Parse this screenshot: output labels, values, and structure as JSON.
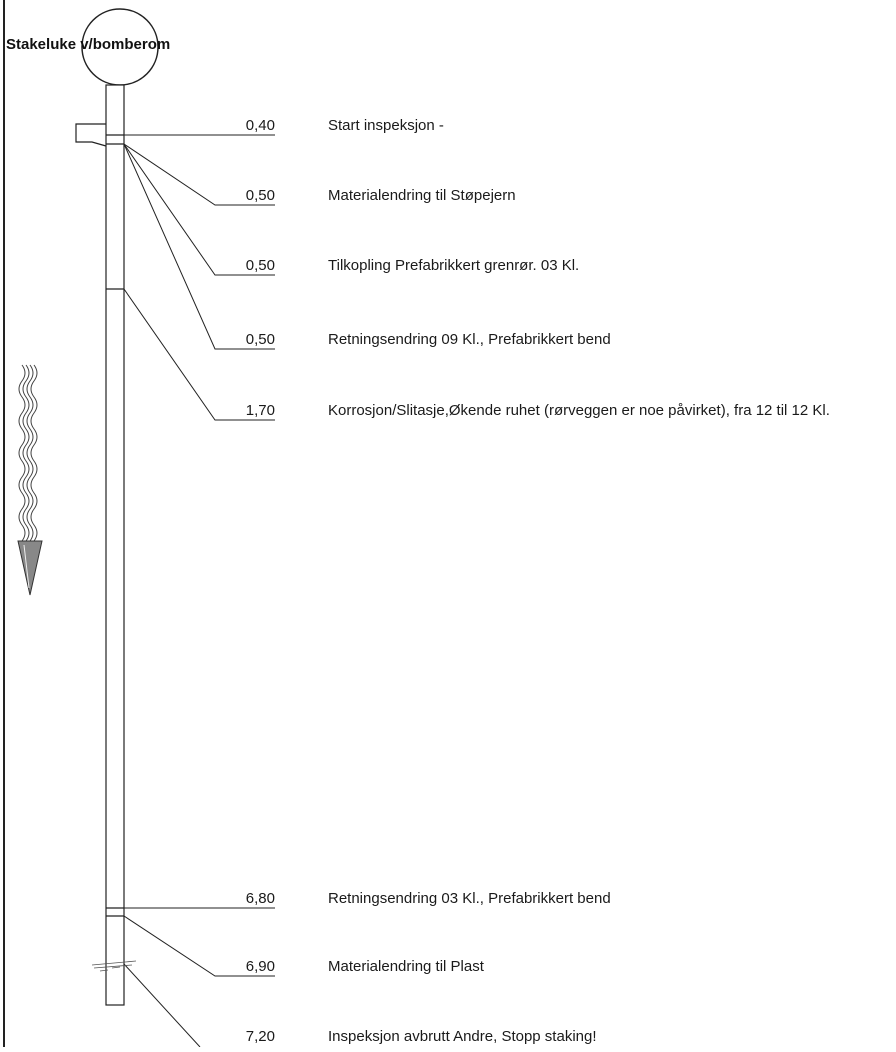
{
  "header": {
    "manhole_label": "Stakeluke v/bomberom"
  },
  "events": [
    {
      "distance": "0,40",
      "description": "Start inspeksjon -"
    },
    {
      "distance": "0,50",
      "description": "Materialendring til Støpejern"
    },
    {
      "distance": "0,50",
      "description": "Tilkopling Prefabrikkert grenrør.  03 Kl."
    },
    {
      "distance": "0,50",
      "description": "Retningsendring  09 Kl., Prefabrikkert bend"
    },
    {
      "distance": "1,70",
      "description": "Korrosjon/Slitasje,Økende ruhet (rørveggen er noe påvirket), fra 12 til 12 Kl."
    },
    {
      "distance": "6,80",
      "description": "Retningsendring  03 Kl., Prefabrikkert bend"
    },
    {
      "distance": "6,90",
      "description": "Materialendring til Plast"
    },
    {
      "distance": "7,20",
      "description": "Inspeksjon avbrutt Andre, Stopp staking!"
    }
  ],
  "colors": {
    "line": "#222222",
    "arrow_fill": "#888888"
  },
  "icons": {
    "flow_direction": "wavy-down-arrow-icon",
    "manhole": "manhole-circle-icon",
    "branch": "branch-connection-icon"
  }
}
